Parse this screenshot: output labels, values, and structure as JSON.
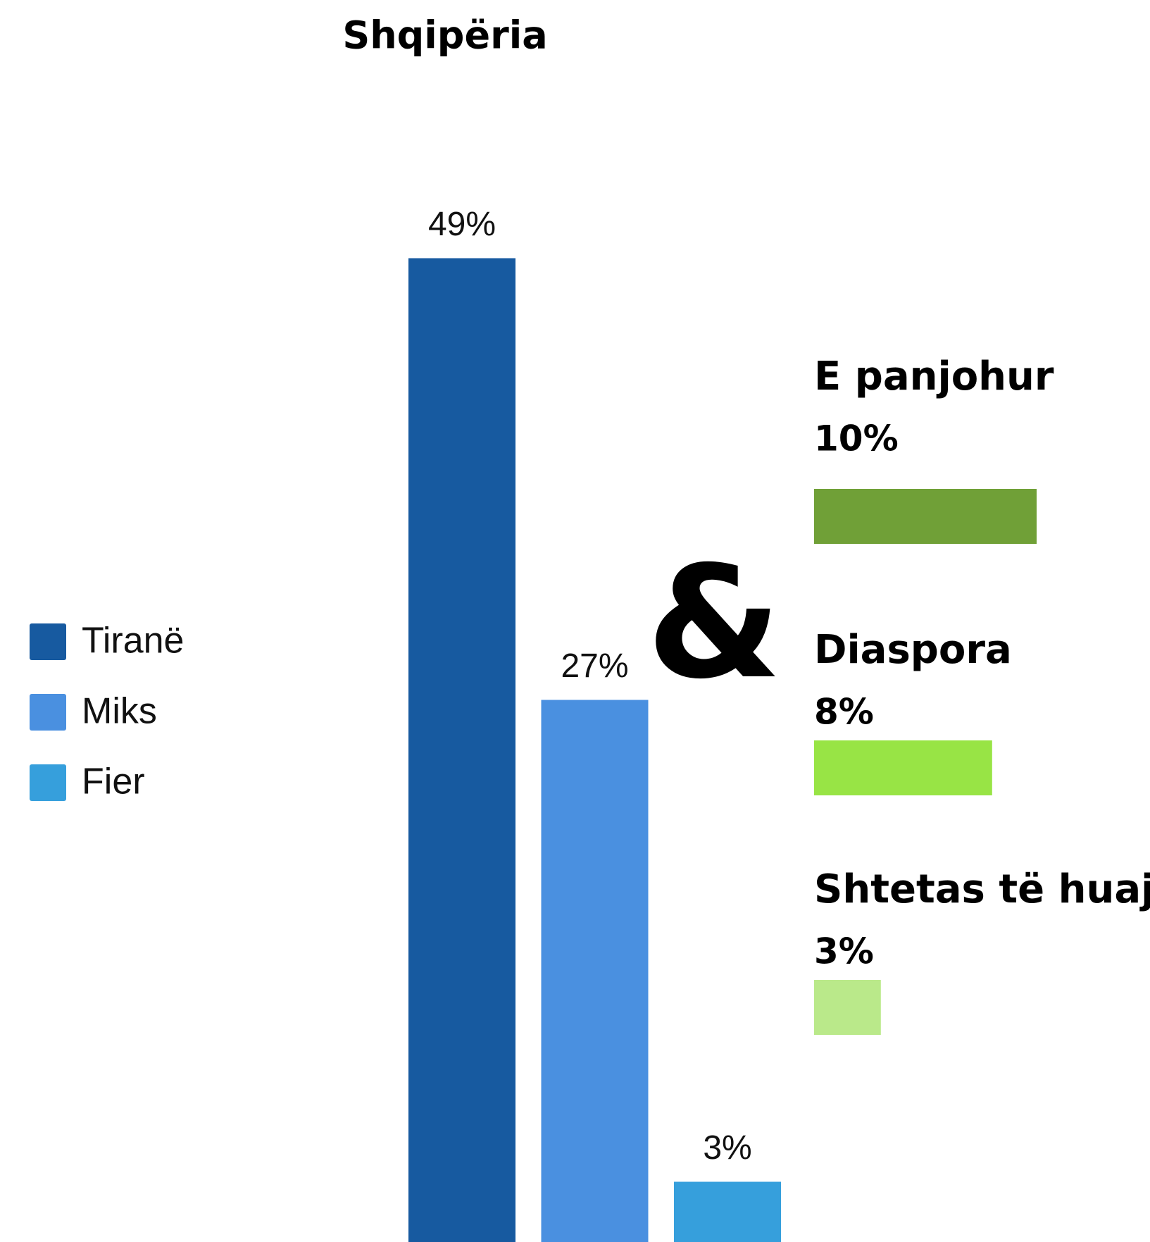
{
  "chart_data": [
    {
      "type": "bar",
      "title": "Shqipëria",
      "categories": [
        "Tiranë",
        "Miks",
        "Fier"
      ],
      "values": [
        49,
        27,
        3
      ],
      "value_labels": [
        "49%",
        "27%",
        "3%"
      ],
      "colors": [
        "#175aa0",
        "#4a90e0",
        "#369fdc"
      ],
      "legend": "left"
    },
    {
      "type": "hbar",
      "categories": [
        "E panjohur",
        "Diaspora",
        "Shtetas të huaj"
      ],
      "values": [
        10,
        8,
        3
      ],
      "value_labels": [
        "10%",
        "8%",
        "3%"
      ],
      "colors": [
        "#70a037",
        "#98e445",
        "#bae98a"
      ]
    }
  ],
  "connector": "&"
}
